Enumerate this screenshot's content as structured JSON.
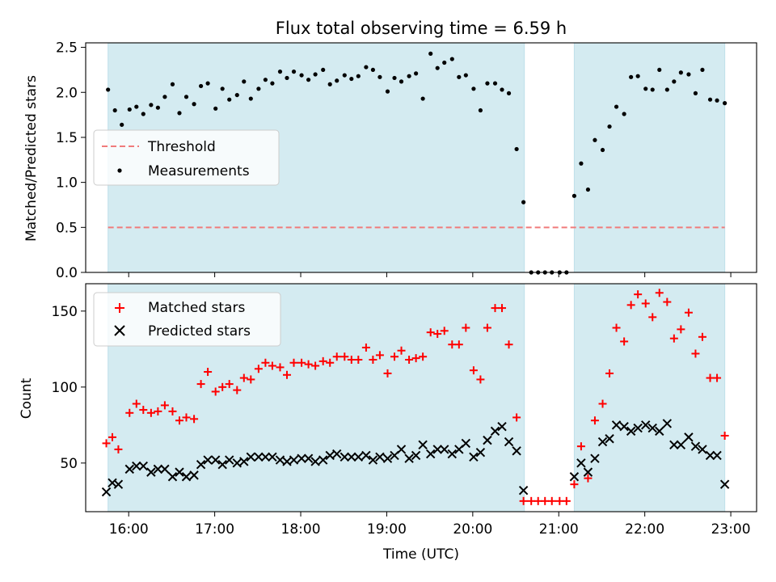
{
  "colors": {
    "shade": "#d4ebf1",
    "threshold": "#f07b7b",
    "matched": "#ff0000",
    "predicted": "#000000",
    "measurement": "#000000"
  },
  "chart_data": [
    {
      "type": "scatter",
      "title": "Flux total observing time = 6.59 h",
      "ylabel": "Matched/Predicted stars",
      "xlabel": "",
      "xlim": [
        15.5,
        23.3
      ],
      "ylim": [
        0.0,
        2.55
      ],
      "yticks": [
        0.0,
        0.5,
        1.0,
        1.5,
        2.0,
        2.5
      ],
      "ytick_labels": [
        "0.0",
        "0.5",
        "1.0",
        "1.5",
        "2.0",
        "2.5"
      ],
      "xticks": [
        16,
        17,
        18,
        19,
        20,
        21,
        22,
        23
      ],
      "shaded_ranges": [
        [
          15.76,
          20.6
        ],
        [
          21.18,
          22.93
        ]
      ],
      "threshold": 0.5,
      "legend": {
        "placement": "center-left",
        "entries": [
          "Threshold",
          "Measurements"
        ]
      },
      "series": [
        {
          "name": "Measurements",
          "x": [
            15.76,
            15.84,
            15.92,
            16.01,
            16.09,
            16.17,
            16.26,
            16.34,
            16.42,
            16.51,
            16.59,
            16.67,
            16.76,
            16.84,
            16.92,
            17.01,
            17.09,
            17.17,
            17.26,
            17.34,
            17.42,
            17.51,
            17.59,
            17.67,
            17.76,
            17.84,
            17.92,
            18.01,
            18.09,
            18.17,
            18.26,
            18.34,
            18.42,
            18.51,
            18.59,
            18.67,
            18.76,
            18.84,
            18.92,
            19.01,
            19.09,
            19.17,
            19.26,
            19.34,
            19.42,
            19.51,
            19.59,
            19.67,
            19.76,
            19.84,
            19.92,
            20.01,
            20.09,
            20.17,
            20.26,
            20.34,
            20.42,
            20.51,
            20.59,
            20.68,
            20.76,
            20.84,
            20.92,
            21.01,
            21.09,
            21.18,
            21.26,
            21.34,
            21.42,
            21.51,
            21.59,
            21.67,
            21.76,
            21.84,
            21.92,
            22.01,
            22.09,
            22.17,
            22.26,
            22.34,
            22.42,
            22.51,
            22.59,
            22.67,
            22.76,
            22.84,
            22.93
          ],
          "y": [
            2.03,
            1.8,
            1.64,
            1.81,
            1.84,
            1.76,
            1.86,
            1.83,
            1.95,
            2.09,
            1.77,
            1.95,
            1.87,
            2.07,
            2.1,
            1.82,
            2.04,
            1.92,
            1.97,
            2.12,
            1.93,
            2.04,
            2.14,
            2.1,
            2.23,
            2.16,
            2.23,
            2.19,
            2.14,
            2.2,
            2.25,
            2.09,
            2.13,
            2.19,
            2.15,
            2.18,
            2.28,
            2.25,
            2.17,
            2.01,
            2.16,
            2.12,
            2.18,
            2.21,
            1.93,
            2.43,
            2.27,
            2.33,
            2.37,
            2.17,
            2.19,
            2.04,
            1.8,
            2.1,
            2.1,
            2.03,
            1.99,
            1.37,
            0.78,
            0.0,
            0.0,
            0.0,
            0.0,
            0.0,
            0.0,
            0.85,
            1.21,
            0.92,
            1.47,
            1.36,
            1.62,
            1.84,
            1.76,
            2.17,
            2.18,
            2.04,
            2.03,
            2.25,
            2.03,
            2.12,
            2.22,
            2.2,
            1.99,
            2.25,
            1.92,
            1.91,
            1.88
          ]
        }
      ]
    },
    {
      "type": "scatter",
      "title": "",
      "ylabel": "Count",
      "xlabel": "Time (UTC)",
      "xlim": [
        15.5,
        23.3
      ],
      "ylim": [
        18,
        168
      ],
      "yticks": [
        50,
        100,
        150
      ],
      "ytick_labels": [
        "50",
        "100",
        "150"
      ],
      "xticks": [
        16,
        17,
        18,
        19,
        20,
        21,
        22,
        23
      ],
      "xtick_labels": [
        "16:00",
        "17:00",
        "18:00",
        "19:00",
        "20:00",
        "21:00",
        "22:00",
        "23:00"
      ],
      "shaded_ranges": [
        [
          15.76,
          20.6
        ],
        [
          21.18,
          22.93
        ]
      ],
      "legend": {
        "placement": "top-left",
        "entries": [
          "Matched stars",
          "Predicted stars"
        ]
      },
      "series": [
        {
          "name": "Matched stars",
          "x": [
            15.74,
            15.81,
            15.88,
            16.01,
            16.09,
            16.17,
            16.26,
            16.34,
            16.42,
            16.51,
            16.59,
            16.67,
            16.76,
            16.84,
            16.92,
            17.01,
            17.09,
            17.17,
            17.26,
            17.34,
            17.42,
            17.51,
            17.59,
            17.67,
            17.76,
            17.84,
            17.92,
            18.01,
            18.09,
            18.17,
            18.26,
            18.34,
            18.42,
            18.51,
            18.59,
            18.67,
            18.76,
            18.84,
            18.92,
            19.01,
            19.09,
            19.17,
            19.26,
            19.34,
            19.42,
            19.51,
            19.59,
            19.67,
            19.76,
            19.84,
            19.92,
            20.01,
            20.09,
            20.17,
            20.26,
            20.34,
            20.42,
            20.51,
            20.59,
            20.68,
            20.76,
            20.84,
            20.92,
            21.01,
            21.09,
            21.18,
            21.26,
            21.34,
            21.42,
            21.51,
            21.59,
            21.67,
            21.76,
            21.84,
            21.92,
            22.01,
            22.09,
            22.17,
            22.26,
            22.34,
            22.42,
            22.51,
            22.59,
            22.67,
            22.76,
            22.84,
            22.93
          ],
          "y": [
            63,
            67,
            59,
            83,
            89,
            85,
            83,
            84,
            88,
            84,
            78,
            80,
            79,
            102,
            110,
            97,
            100,
            102,
            98,
            106,
            105,
            112,
            116,
            114,
            113,
            108,
            116,
            116,
            115,
            114,
            117,
            116,
            120,
            120,
            118,
            118,
            126,
            118,
            121,
            109,
            120,
            124,
            118,
            119,
            120,
            136,
            135,
            137,
            128,
            128,
            139,
            111,
            105,
            139,
            152,
            152,
            128,
            80,
            25,
            25,
            25,
            25,
            25,
            25,
            25,
            36,
            61,
            40,
            78,
            89,
            109,
            139,
            130,
            154,
            161,
            155,
            146,
            162,
            156,
            132,
            138,
            149,
            122,
            133,
            106,
            106,
            68
          ]
        },
        {
          "name": "Predicted stars",
          "x": [
            15.74,
            15.81,
            15.88,
            16.01,
            16.09,
            16.17,
            16.26,
            16.34,
            16.42,
            16.51,
            16.59,
            16.67,
            16.76,
            16.84,
            16.92,
            17.01,
            17.09,
            17.17,
            17.26,
            17.34,
            17.42,
            17.51,
            17.59,
            17.67,
            17.76,
            17.84,
            17.92,
            18.01,
            18.09,
            18.17,
            18.26,
            18.34,
            18.42,
            18.51,
            18.59,
            18.67,
            18.76,
            18.84,
            18.92,
            19.01,
            19.09,
            19.17,
            19.26,
            19.34,
            19.42,
            19.51,
            19.59,
            19.67,
            19.76,
            19.84,
            19.92,
            20.01,
            20.09,
            20.17,
            20.26,
            20.34,
            20.42,
            20.51,
            20.59,
            21.18,
            21.26,
            21.34,
            21.42,
            21.51,
            21.59,
            21.67,
            21.76,
            21.84,
            21.92,
            22.01,
            22.09,
            22.17,
            22.26,
            22.34,
            22.42,
            22.51,
            22.59,
            22.67,
            22.76,
            22.84,
            22.93
          ],
          "y": [
            31,
            37,
            36,
            46,
            48,
            48,
            44,
            46,
            46,
            41,
            44,
            41,
            42,
            49,
            52,
            52,
            49,
            52,
            50,
            51,
            54,
            54,
            54,
            54,
            52,
            51,
            52,
            53,
            53,
            51,
            52,
            55,
            56,
            54,
            54,
            54,
            55,
            52,
            54,
            53,
            55,
            59,
            53,
            55,
            62,
            56,
            59,
            59,
            56,
            59,
            63,
            54,
            57,
            65,
            71,
            74,
            64,
            58,
            32,
            41,
            50,
            44,
            53,
            64,
            66,
            75,
            74,
            71,
            73,
            75,
            73,
            71,
            76,
            62,
            62,
            67,
            61,
            59,
            55,
            55,
            36
          ]
        }
      ]
    }
  ]
}
